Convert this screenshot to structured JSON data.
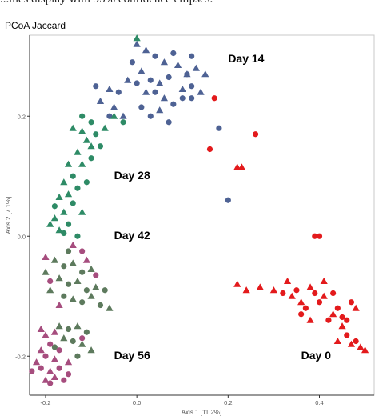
{
  "caption": "...mes display with 95% confidence ellipses.",
  "chart_data": {
    "type": "scatter",
    "title": "PCoA Jaccard",
    "xlabel": "Axis.1  [11.2%]",
    "ylabel": "Axis.2  [7.1%]",
    "xlim": [
      -0.235,
      0.52
    ],
    "ylim": [
      -0.265,
      0.335
    ],
    "x_ticks": [
      -0.2,
      0.0,
      0.2,
      0.4
    ],
    "x_tick_labels": [
      "-0.2",
      "0.0",
      "0.2",
      "0.4"
    ],
    "y_ticks": [
      -0.2,
      0.0,
      0.2
    ],
    "y_tick_labels": [
      "-0.2",
      "0.0",
      "0.2"
    ],
    "grid": false,
    "legend": "none",
    "group_labels": [
      {
        "text": "Day 14",
        "x": 0.2,
        "y": 0.29
      },
      {
        "text": "Day 28",
        "x": -0.05,
        "y": 0.095
      },
      {
        "text": "Day 42",
        "x": -0.05,
        "y": -0.005
      },
      {
        "text": "Day 56",
        "x": -0.05,
        "y": -0.205
      },
      {
        "text": "Day 0",
        "x": 0.36,
        "y": -0.205
      }
    ],
    "series": [
      {
        "color": "#e31a1c",
        "points": [
          [
            0.17,
            0.23,
            "c"
          ],
          [
            0.26,
            0.17,
            "c"
          ],
          [
            0.16,
            0.145,
            "c"
          ],
          [
            0.39,
            0.0,
            "c"
          ],
          [
            0.4,
            0.0,
            "c"
          ],
          [
            0.23,
            0.115,
            "t"
          ],
          [
            0.22,
            0.115,
            "t"
          ],
          [
            0.22,
            -0.08,
            "t"
          ],
          [
            0.24,
            -0.09,
            "t"
          ],
          [
            0.27,
            -0.085,
            "t"
          ],
          [
            0.3,
            -0.09,
            "t"
          ],
          [
            0.32,
            -0.095,
            "c"
          ],
          [
            0.33,
            -0.075,
            "t"
          ],
          [
            0.34,
            -0.1,
            "t"
          ],
          [
            0.35,
            -0.09,
            "c"
          ],
          [
            0.36,
            -0.11,
            "t"
          ],
          [
            0.37,
            -0.12,
            "c"
          ],
          [
            0.38,
            -0.085,
            "t"
          ],
          [
            0.39,
            -0.095,
            "c"
          ],
          [
            0.4,
            -0.11,
            "c"
          ],
          [
            0.41,
            -0.075,
            "t"
          ],
          [
            0.41,
            -0.1,
            "t"
          ],
          [
            0.42,
            -0.14,
            "c"
          ],
          [
            0.43,
            -0.13,
            "t"
          ],
          [
            0.43,
            -0.095,
            "c"
          ],
          [
            0.44,
            -0.12,
            "c"
          ],
          [
            0.45,
            -0.15,
            "t"
          ],
          [
            0.46,
            -0.14,
            "c"
          ],
          [
            0.46,
            -0.165,
            "c"
          ],
          [
            0.47,
            -0.11,
            "c"
          ],
          [
            0.47,
            -0.18,
            "t"
          ],
          [
            0.48,
            -0.12,
            "t"
          ],
          [
            0.48,
            -0.175,
            "c"
          ],
          [
            0.49,
            -0.185,
            "t"
          ],
          [
            0.5,
            -0.19,
            "t"
          ],
          [
            0.44,
            -0.175,
            "t"
          ],
          [
            0.45,
            -0.135,
            "c"
          ],
          [
            0.38,
            -0.14,
            "t"
          ],
          [
            0.36,
            -0.13,
            "c"
          ]
        ]
      },
      {
        "color": "#4e6294",
        "points": [
          [
            0.0,
            0.32,
            "t"
          ],
          [
            0.02,
            0.31,
            "t"
          ],
          [
            0.04,
            0.3,
            "c"
          ],
          [
            0.06,
            0.29,
            "t"
          ],
          [
            0.08,
            0.305,
            "c"
          ],
          [
            0.09,
            0.285,
            "t"
          ],
          [
            0.11,
            0.27,
            "c"
          ],
          [
            0.12,
            0.3,
            "c"
          ],
          [
            0.13,
            0.28,
            "t"
          ],
          [
            -0.01,
            0.29,
            "c"
          ],
          [
            0.01,
            0.275,
            "t"
          ],
          [
            0.03,
            0.26,
            "c"
          ],
          [
            0.05,
            0.255,
            "t"
          ],
          [
            0.07,
            0.265,
            "c"
          ],
          [
            0.1,
            0.245,
            "t"
          ],
          [
            0.12,
            0.25,
            "c"
          ],
          [
            0.15,
            0.27,
            "t"
          ],
          [
            0.12,
            0.23,
            "c"
          ],
          [
            0.1,
            0.23,
            "c"
          ],
          [
            0.08,
            0.22,
            "c"
          ],
          [
            0.06,
            0.23,
            "t"
          ],
          [
            0.04,
            0.24,
            "c"
          ],
          [
            0.02,
            0.24,
            "t"
          ],
          [
            0.0,
            0.255,
            "c"
          ],
          [
            -0.02,
            0.26,
            "t"
          ],
          [
            -0.04,
            0.24,
            "c"
          ],
          [
            -0.06,
            0.245,
            "t"
          ],
          [
            -0.08,
            0.225,
            "t"
          ],
          [
            -0.09,
            0.25,
            "c"
          ],
          [
            -0.06,
            0.2,
            "c"
          ],
          [
            -0.03,
            0.2,
            "t"
          ],
          [
            0.03,
            0.2,
            "c"
          ],
          [
            0.05,
            0.21,
            "t"
          ],
          [
            0.07,
            0.19,
            "c"
          ],
          [
            0.14,
            0.24,
            "t"
          ],
          [
            0.18,
            0.18,
            "c"
          ],
          [
            0.2,
            0.06,
            "c"
          ],
          [
            0.11,
            0.27,
            "t"
          ],
          [
            0.01,
            0.215,
            "c"
          ],
          [
            -0.05,
            0.215,
            "t"
          ]
        ]
      },
      {
        "color": "#2e8b66",
        "points": [
          [
            -0.1,
            0.19,
            "c"
          ],
          [
            -0.12,
            0.175,
            "t"
          ],
          [
            -0.09,
            0.17,
            "c"
          ],
          [
            -0.11,
            0.16,
            "t"
          ],
          [
            -0.08,
            0.15,
            "c"
          ],
          [
            -0.13,
            0.14,
            "t"
          ],
          [
            -0.1,
            0.13,
            "c"
          ],
          [
            -0.12,
            0.12,
            "t"
          ],
          [
            -0.15,
            0.12,
            "t"
          ],
          [
            -0.14,
            0.1,
            "c"
          ],
          [
            -0.16,
            0.09,
            "t"
          ],
          [
            -0.13,
            0.08,
            "c"
          ],
          [
            -0.15,
            0.07,
            "t"
          ],
          [
            -0.17,
            0.065,
            "t"
          ],
          [
            -0.14,
            0.055,
            "c"
          ],
          [
            -0.16,
            0.04,
            "t"
          ],
          [
            -0.18,
            0.03,
            "t"
          ],
          [
            -0.15,
            0.02,
            "c"
          ],
          [
            -0.17,
            0.01,
            "t"
          ],
          [
            -0.13,
            0.0,
            "c"
          ],
          [
            -0.19,
            0.02,
            "t"
          ],
          [
            -0.12,
            0.04,
            "t"
          ],
          [
            -0.1,
            0.15,
            "t"
          ],
          [
            -0.07,
            0.18,
            "t"
          ],
          [
            -0.05,
            0.2,
            "t"
          ],
          [
            -0.03,
            0.19,
            "c"
          ],
          [
            0.0,
            0.33,
            "t"
          ],
          [
            -0.16,
            0.005,
            "c"
          ],
          [
            -0.18,
            0.05,
            "c"
          ],
          [
            -0.11,
            0.09,
            "c"
          ],
          [
            -0.14,
            0.18,
            "t"
          ],
          [
            -0.12,
            0.2,
            "c"
          ]
        ]
      },
      {
        "color": "#5d7a5d",
        "points": [
          [
            -0.18,
            -0.04,
            "t"
          ],
          [
            -0.16,
            -0.05,
            "c"
          ],
          [
            -0.14,
            -0.045,
            "t"
          ],
          [
            -0.12,
            -0.06,
            "c"
          ],
          [
            -0.1,
            -0.055,
            "t"
          ],
          [
            -0.17,
            -0.07,
            "t"
          ],
          [
            -0.15,
            -0.08,
            "c"
          ],
          [
            -0.13,
            -0.075,
            "t"
          ],
          [
            -0.11,
            -0.09,
            "c"
          ],
          [
            -0.09,
            -0.085,
            "t"
          ],
          [
            -0.16,
            -0.1,
            "c"
          ],
          [
            -0.14,
            -0.105,
            "t"
          ],
          [
            -0.12,
            -0.11,
            "c"
          ],
          [
            -0.1,
            -0.1,
            "t"
          ],
          [
            -0.08,
            -0.115,
            "c"
          ],
          [
            -0.19,
            -0.09,
            "t"
          ],
          [
            -0.2,
            -0.06,
            "t"
          ],
          [
            -0.06,
            -0.12,
            "t"
          ],
          [
            -0.07,
            -0.09,
            "c"
          ],
          [
            -0.15,
            -0.025,
            "c"
          ],
          [
            -0.17,
            -0.15,
            "t"
          ],
          [
            -0.15,
            -0.155,
            "c"
          ],
          [
            -0.13,
            -0.15,
            "t"
          ],
          [
            -0.11,
            -0.16,
            "c"
          ],
          [
            -0.16,
            -0.17,
            "t"
          ],
          [
            -0.14,
            -0.175,
            "c"
          ],
          [
            -0.12,
            -0.18,
            "t"
          ],
          [
            -0.18,
            -0.185,
            "c"
          ],
          [
            -0.1,
            -0.19,
            "t"
          ],
          [
            -0.13,
            -0.2,
            "c"
          ]
        ]
      },
      {
        "color": "#a64d7e",
        "points": [
          [
            -0.2,
            -0.165,
            "t"
          ],
          [
            -0.19,
            -0.18,
            "c"
          ],
          [
            -0.21,
            -0.19,
            "t"
          ],
          [
            -0.2,
            -0.2,
            "c"
          ],
          [
            -0.18,
            -0.205,
            "t"
          ],
          [
            -0.17,
            -0.19,
            "c"
          ],
          [
            -0.22,
            -0.21,
            "t"
          ],
          [
            -0.21,
            -0.22,
            "c"
          ],
          [
            -0.19,
            -0.225,
            "t"
          ],
          [
            -0.17,
            -0.22,
            "c"
          ],
          [
            -0.18,
            -0.235,
            "t"
          ],
          [
            -0.2,
            -0.24,
            "t"
          ],
          [
            -0.16,
            -0.24,
            "c"
          ],
          [
            -0.15,
            -0.21,
            "t"
          ],
          [
            -0.23,
            -0.225,
            "c"
          ],
          [
            -0.19,
            -0.245,
            "c"
          ],
          [
            -0.21,
            -0.155,
            "t"
          ],
          [
            -0.12,
            -0.17,
            "c"
          ],
          [
            -0.18,
            -0.16,
            "t"
          ],
          [
            -0.15,
            -0.23,
            "c"
          ],
          [
            -0.2,
            -0.035,
            "t"
          ],
          [
            -0.19,
            -0.075,
            "c"
          ],
          [
            -0.14,
            -0.015,
            "t"
          ],
          [
            -0.12,
            -0.025,
            "c"
          ],
          [
            -0.11,
            -0.04,
            "t"
          ],
          [
            -0.09,
            -0.065,
            "c"
          ],
          [
            -0.17,
            -0.115,
            "t"
          ]
        ]
      }
    ]
  }
}
